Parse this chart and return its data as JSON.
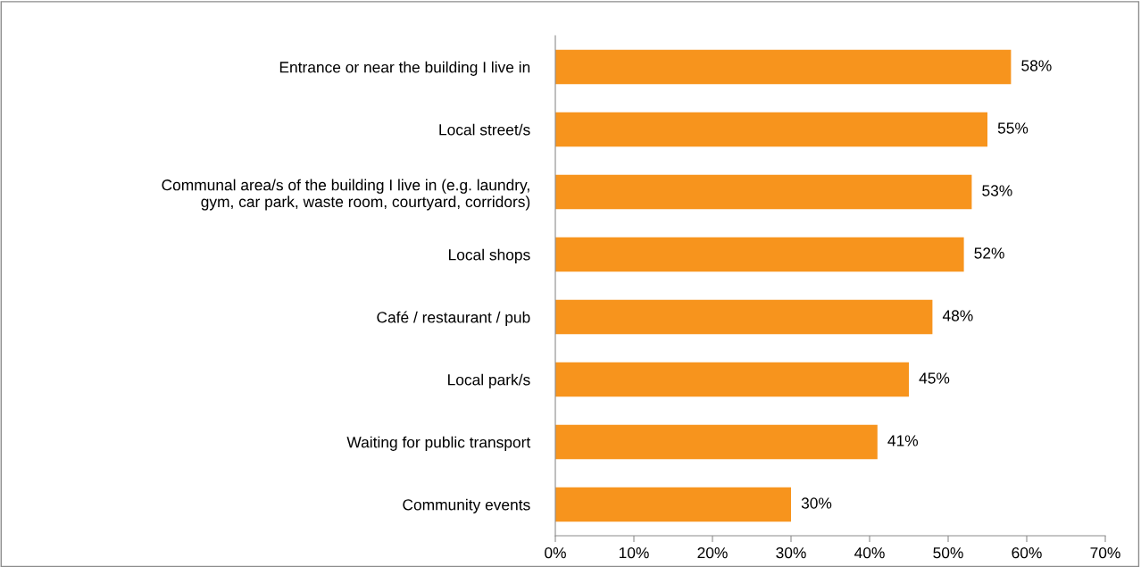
{
  "chart_data": {
    "type": "bar",
    "orientation": "horizontal",
    "categories": [
      "Entrance or near the building I live in",
      "Local street/s",
      "Communal area/s of the building I live in (e.g. laundry,\ngym, car park, waste room, courtyard, corridors)",
      "Local shops",
      "Café / restaurant / pub",
      "Local park/s",
      "Waiting for public transport",
      "Community events"
    ],
    "values": [
      58,
      55,
      53,
      52,
      48,
      45,
      41,
      30
    ],
    "value_labels": [
      "58%",
      "55%",
      "53%",
      "52%",
      "48%",
      "45%",
      "41%",
      "30%"
    ],
    "color": "#f7941d",
    "xlim": [
      0,
      70
    ],
    "xticks": [
      {
        "value": 0,
        "label": "0%"
      },
      {
        "value": 10,
        "label": "10%"
      },
      {
        "value": 20,
        "label": "20%"
      },
      {
        "value": 30,
        "label": "30%"
      },
      {
        "value": 40,
        "label": "40%"
      },
      {
        "value": 50,
        "label": "50%"
      },
      {
        "value": 60,
        "label": "60%"
      },
      {
        "value": 70,
        "label": "70%"
      }
    ],
    "grid": false,
    "legend": false
  }
}
